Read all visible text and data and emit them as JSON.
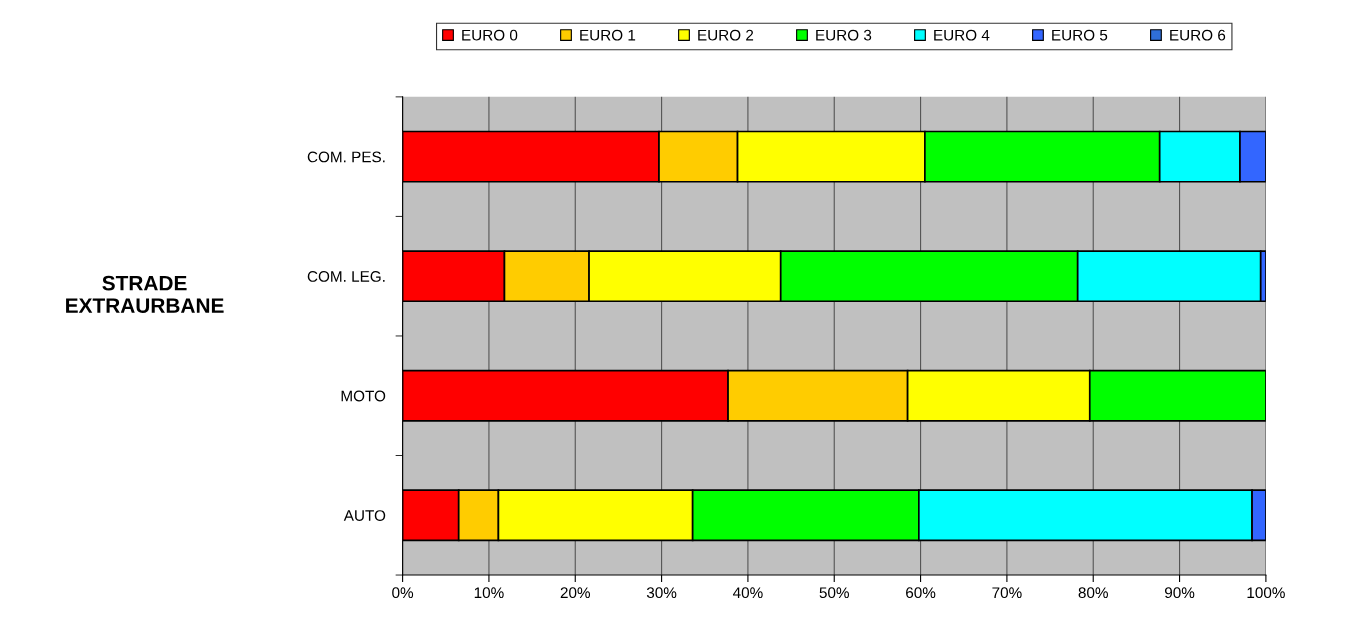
{
  "chart_data": {
    "type": "bar",
    "orientation": "horizontal",
    "stacked": true,
    "categories": [
      "COM. PES.",
      "COM. LEG.",
      "MOTO",
      "AUTO"
    ],
    "series": [
      {
        "name": "EURO 0",
        "color": "#ff0000",
        "values": [
          29.7,
          11.8,
          37.7,
          6.5
        ]
      },
      {
        "name": "EURO 1",
        "color": "#ffcc00",
        "values": [
          9.1,
          9.8,
          20.8,
          4.6
        ]
      },
      {
        "name": "EURO 2",
        "color": "#ffff00",
        "values": [
          21.7,
          22.2,
          21.1,
          22.5
        ]
      },
      {
        "name": "EURO 3",
        "color": "#00ff00",
        "values": [
          27.2,
          34.4,
          20.4,
          26.2
        ]
      },
      {
        "name": "EURO 4",
        "color": "#00ffff",
        "values": [
          9.3,
          21.2,
          null,
          38.6
        ]
      },
      {
        "name": "EURO 5",
        "color": "#3366ff",
        "values": [
          3.0,
          0.6,
          null,
          1.6
        ]
      },
      {
        "name": "EURO 6",
        "color": "#2f6fd8",
        "values": [
          null,
          null,
          null,
          null
        ]
      }
    ],
    "xlim": [
      0,
      100
    ],
    "xticks": [
      {
        "value": 0,
        "label": "0%"
      },
      {
        "value": 10,
        "label": "10%"
      },
      {
        "value": 20,
        "label": "20%"
      },
      {
        "value": 30,
        "label": "30%"
      },
      {
        "value": 40,
        "label": "40%"
      },
      {
        "value": 50,
        "label": "50%"
      },
      {
        "value": 60,
        "label": "60%"
      },
      {
        "value": 70,
        "label": "70%"
      },
      {
        "value": 80,
        "label": "80%"
      },
      {
        "value": 90,
        "label": "90%"
      },
      {
        "value": 100,
        "label": "100%"
      }
    ],
    "grid": "x",
    "legend": "top",
    "annotations": [
      "STRADE\nEXTRAURBANE"
    ]
  }
}
